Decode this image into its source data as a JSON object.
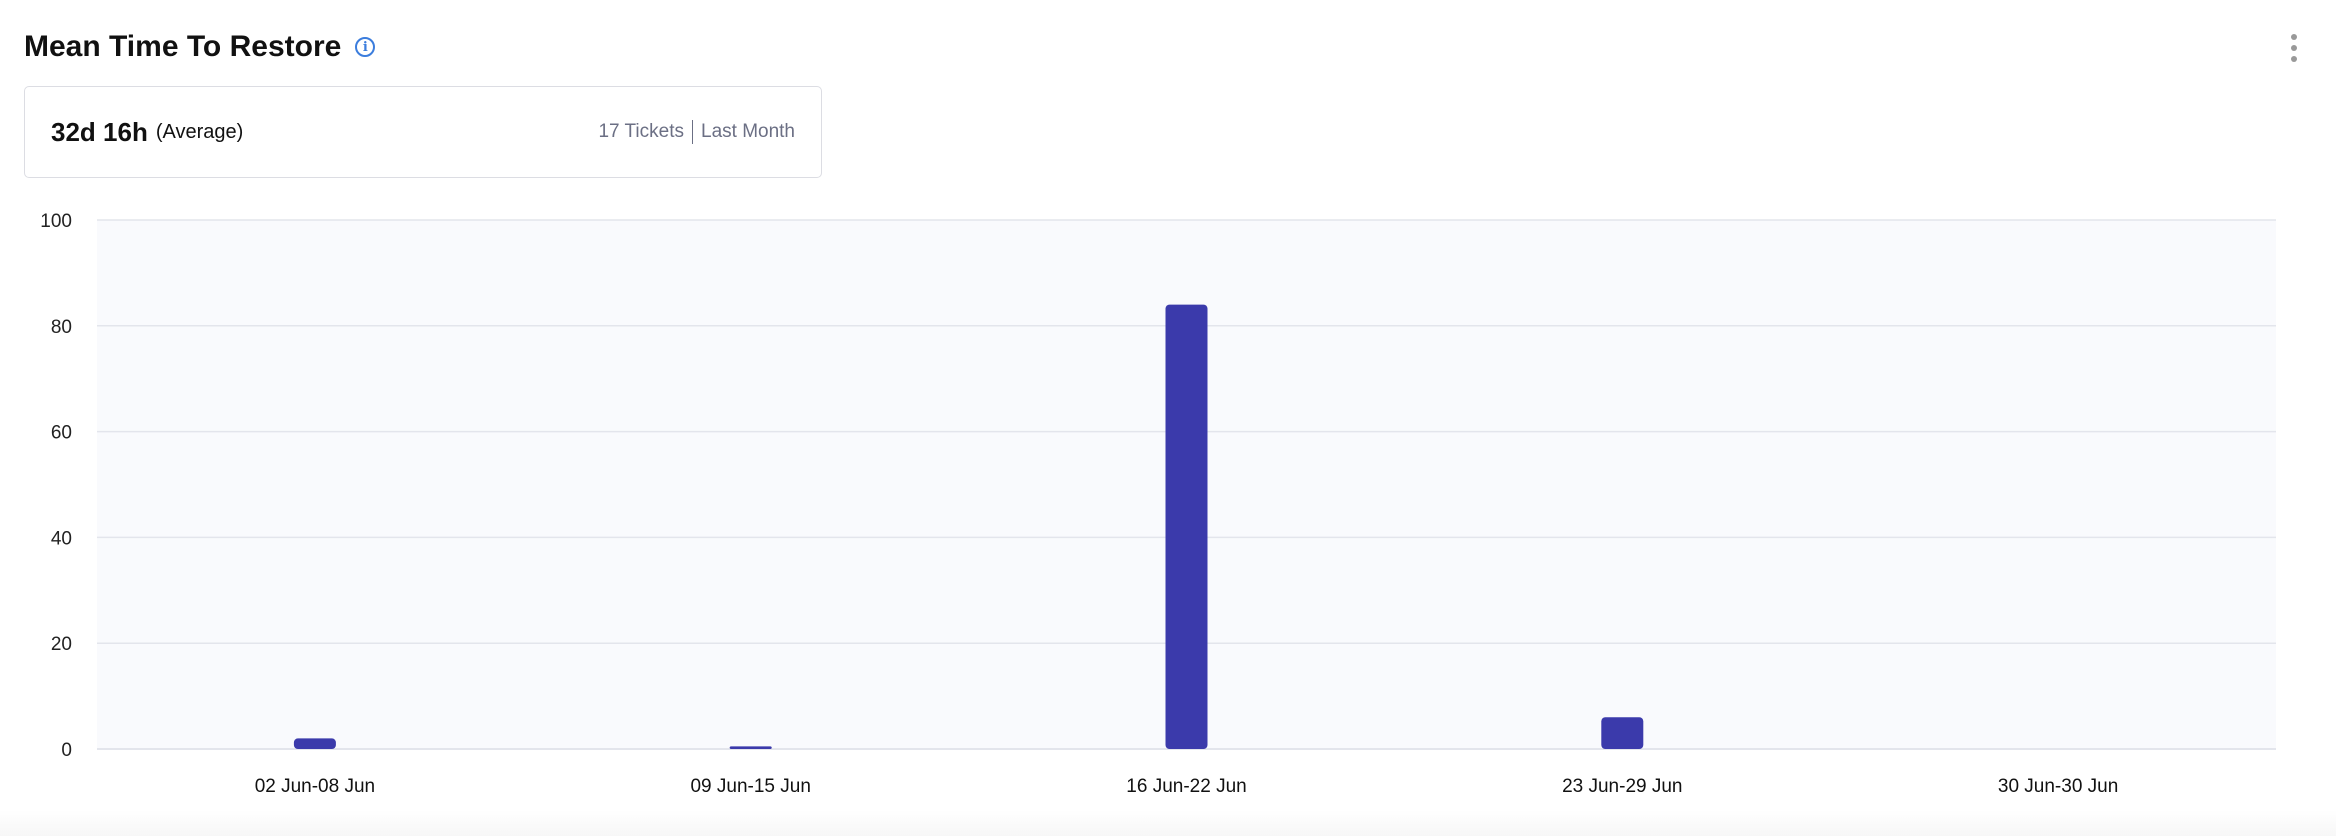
{
  "header": {
    "title": "Mean Time To Restore",
    "info_icon": "info-icon",
    "menu_icon": "kebab-menu-icon"
  },
  "summary": {
    "value": "32d 16h",
    "label": "(Average)",
    "tickets": "17 Tickets",
    "period": "Last Month"
  },
  "chart_data": {
    "type": "bar",
    "categories": [
      "02 Jun-08 Jun",
      "09 Jun-15 Jun",
      "16 Jun-22 Jun",
      "23 Jun-29 Jun",
      "30 Jun-30 Jun"
    ],
    "values": [
      2,
      0.5,
      84,
      6,
      0
    ],
    "ylim": [
      0,
      100
    ],
    "yticks": [
      0,
      20,
      40,
      60,
      80,
      100
    ],
    "grid": true,
    "bar_color": "#3b3aab",
    "plot_background": "#f9fafd"
  }
}
